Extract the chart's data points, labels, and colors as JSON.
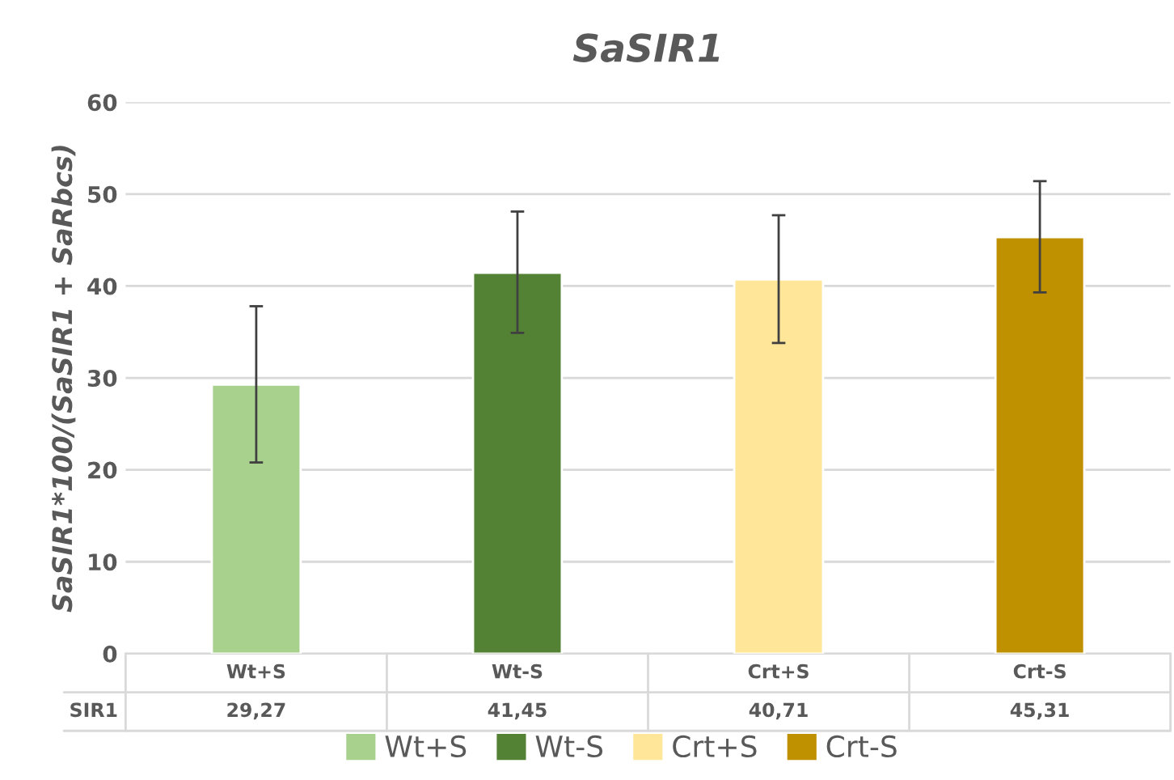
{
  "chart_data": {
    "type": "bar",
    "title": "SaSIR1",
    "ylabel": "SaSIR1*100/(SaSIR1 + SaRbcs)",
    "categories": [
      "Wt+S",
      "Wt-S",
      "Crt+S",
      "Crt-S"
    ],
    "series": [
      {
        "name": "SIR1",
        "colors": [
          "#a9d18e",
          "#548235",
          "#ffe699",
          "#bf9000"
        ],
        "values": [
          29.27,
          41.45,
          40.71,
          45.31
        ],
        "value_labels": [
          "29,27",
          "41,45",
          "40,71",
          "45,31"
        ],
        "errors": [
          [
            20.8,
            37.8
          ],
          [
            34.9,
            48.1
          ],
          [
            33.8,
            47.7
          ],
          [
            39.3,
            51.4
          ]
        ]
      }
    ],
    "ylim": [
      0,
      60
    ],
    "yticks": [
      0,
      10,
      20,
      30,
      40,
      50,
      60
    ],
    "grid": "y",
    "legend": "bottom"
  }
}
